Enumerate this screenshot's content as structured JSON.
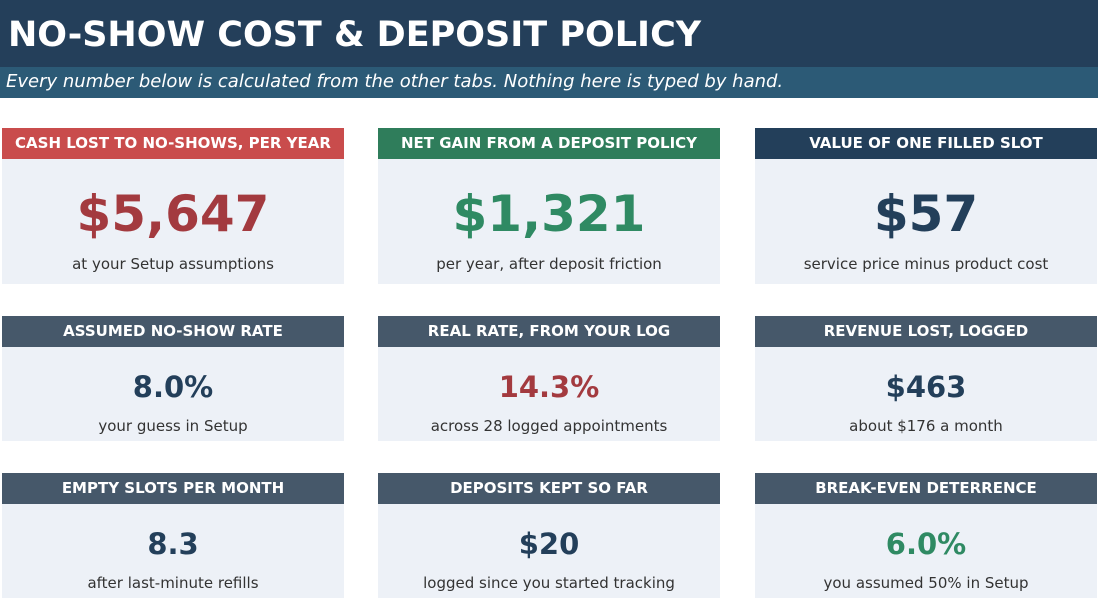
{
  "header": {
    "title": "NO-SHOW COST & DEPOSIT POLICY",
    "subtitle": "Every number below is calculated from the other tabs. Nothing here is typed by hand."
  },
  "cards": [
    {
      "title": "CASH LOST TO NO-SHOWS, PER YEAR",
      "value": "$5,647",
      "caption": "at your Setup assumptions",
      "header_color": "#c94c4c",
      "value_color": "#a33a3f"
    },
    {
      "title": "NET GAIN FROM A DEPOSIT POLICY",
      "value": "$1,321",
      "caption": "per year, after deposit friction",
      "header_color": "#2f7d5b",
      "value_color": "#2f8a63"
    },
    {
      "title": "VALUE OF ONE FILLED SLOT",
      "value": "$57",
      "caption": "service price minus product cost",
      "header_color": "#233f5a",
      "value_color": "#233f5a"
    },
    {
      "title": "ASSUMED NO-SHOW RATE",
      "value": "8.0%",
      "caption": "your guess in Setup",
      "header_color": "#46586a",
      "value_color": "#233f5a"
    },
    {
      "title": "REAL RATE, FROM YOUR LOG",
      "value": "14.3%",
      "caption": "across 28 logged appointments",
      "header_color": "#46586a",
      "value_color": "#a33a3f"
    },
    {
      "title": "REVENUE LOST, LOGGED",
      "value": "$463",
      "caption": "about $176 a month",
      "header_color": "#46586a",
      "value_color": "#233f5a"
    },
    {
      "title": "EMPTY SLOTS PER MONTH",
      "value": "8.3",
      "caption": "after last-minute refills",
      "header_color": "#46586a",
      "value_color": "#233f5a"
    },
    {
      "title": "DEPOSITS KEPT SO FAR",
      "value": "$20",
      "caption": "logged since you started tracking",
      "header_color": "#46586a",
      "value_color": "#233f5a"
    },
    {
      "title": "BREAK-EVEN DETERRENCE",
      "value": "6.0%",
      "caption": "you assumed 50% in Setup",
      "header_color": "#46586a",
      "value_color": "#2f8a63"
    }
  ]
}
